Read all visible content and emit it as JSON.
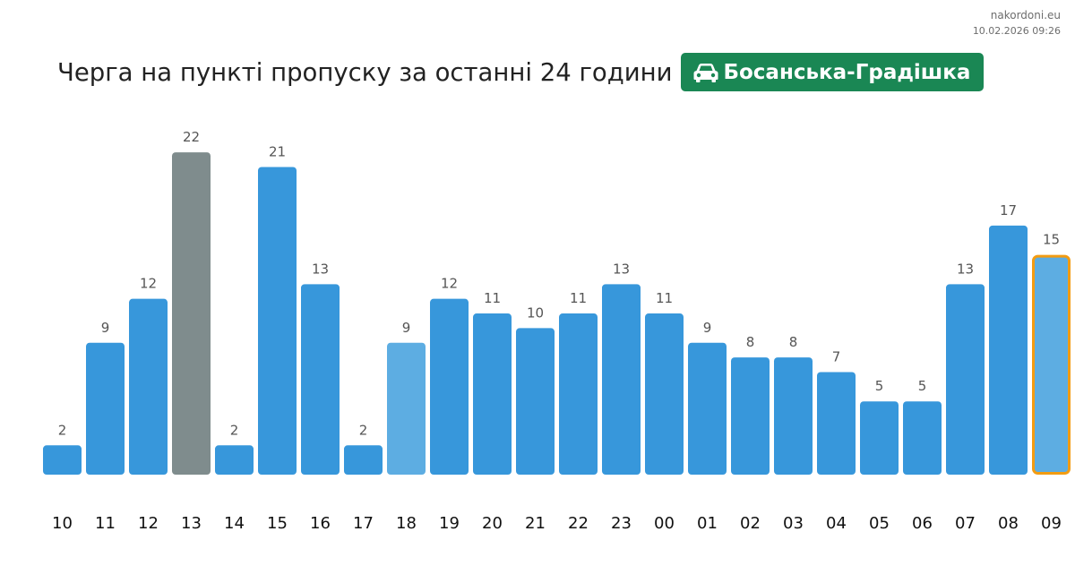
{
  "watermark": {
    "site": "nakordoni.eu",
    "timestamp": "10.02.2026 09:26"
  },
  "header": {
    "title": "Черга на пункті пропуску за останні 24 години",
    "checkpoint": "Босанська-Градішка",
    "checkpoint_icon": "car-icon",
    "checkpoint_color": "#1a8754"
  },
  "colors": {
    "bar_default": "#3797db",
    "bar_light": "#5dade2",
    "bar_max": "#7f8c8d",
    "bar_current_outline": "#f39c12",
    "value_label": "#555555",
    "tick_label": "#111111"
  },
  "chart_data": {
    "type": "bar",
    "categories": [
      "10",
      "11",
      "12",
      "13",
      "14",
      "15",
      "16",
      "17",
      "18",
      "19",
      "20",
      "21",
      "22",
      "23",
      "00",
      "01",
      "02",
      "03",
      "04",
      "05",
      "06",
      "07",
      "08",
      "09"
    ],
    "values": [
      2,
      9,
      12,
      22,
      2,
      21,
      13,
      2,
      9,
      12,
      11,
      10,
      11,
      13,
      11,
      9,
      8,
      8,
      7,
      5,
      5,
      13,
      17,
      15
    ],
    "highlight_max_index": 3,
    "highlight_light_index": 8,
    "current_index": 23,
    "title": "",
    "xlabel": "",
    "ylabel": "",
    "grid": false,
    "data_labels": true
  }
}
